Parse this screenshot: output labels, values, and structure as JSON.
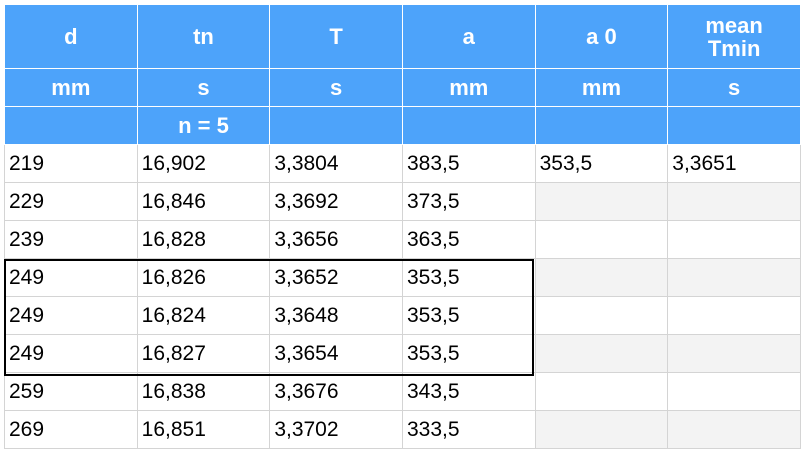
{
  "header": {
    "names": [
      "d",
      "tn",
      "T",
      "a",
      "a 0",
      "mean\nTmin"
    ],
    "units": [
      "mm",
      "s",
      "s",
      "mm",
      "mm",
      "s"
    ],
    "sub": [
      "",
      "n = 5",
      "",
      "",
      "",
      ""
    ]
  },
  "rows": [
    [
      "219",
      "16,902",
      "3,3804",
      "383,5",
      "353,5",
      "3,3651"
    ],
    [
      "229",
      "16,846",
      "3,3692",
      "373,5",
      "",
      ""
    ],
    [
      "239",
      "16,828",
      "3,3656",
      "363,5",
      "",
      ""
    ],
    [
      "249",
      "16,826",
      "3,3652",
      "353,5",
      "",
      ""
    ],
    [
      "249",
      "16,824",
      "3,3648",
      "353,5",
      "",
      ""
    ],
    [
      "249",
      "16,827",
      "3,3654",
      "353,5",
      "",
      ""
    ],
    [
      "259",
      "16,838",
      "3,3676",
      "343,5",
      "",
      ""
    ],
    [
      "269",
      "16,851",
      "3,3702",
      "333,5",
      "",
      ""
    ]
  ],
  "colors": {
    "header_bg": "#4da3fa",
    "header_text": "#ffffff",
    "shaded_cell": "#f3f3f3",
    "grid_line": "#d4d4d4"
  }
}
